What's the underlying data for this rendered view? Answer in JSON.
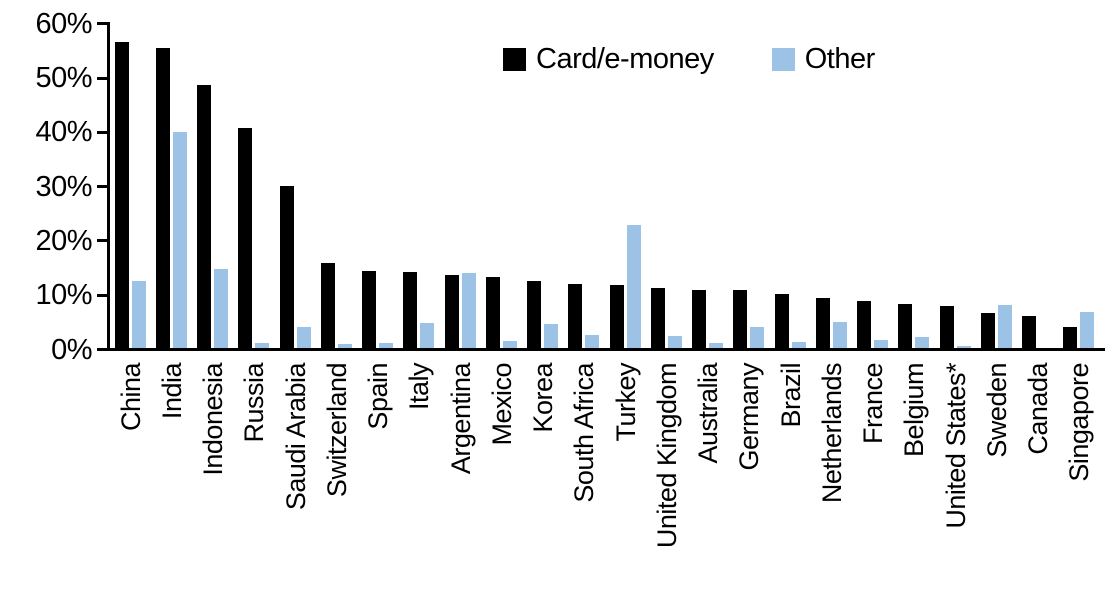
{
  "chart_data": {
    "type": "bar",
    "categories": [
      "China",
      "India",
      "Indonesia",
      "Russia",
      "Saudi Arabia",
      "Switzerland",
      "Spain",
      "Italy",
      "Argentina",
      "Mexico",
      "Korea",
      "South Africa",
      "Turkey",
      "United Kingdom",
      "Australia",
      "Germany",
      "Brazil",
      "Netherlands",
      "France",
      "Belgium",
      "United States*",
      "Sweden",
      "Canada",
      "Singapore"
    ],
    "series": [
      {
        "name": "Card/e-money",
        "color": "#000000",
        "values": [
          56.4,
          55.2,
          48.4,
          40.6,
          29.9,
          15.6,
          14.1,
          14.0,
          13.4,
          13.0,
          12.3,
          11.7,
          11.6,
          11.0,
          10.7,
          10.6,
          9.9,
          9.2,
          8.6,
          8.1,
          7.8,
          6.5,
          5.9,
          3.9
        ]
      },
      {
        "name": "Other",
        "color": "#9CC2E5",
        "values": [
          12.3,
          39.8,
          14.5,
          1.0,
          3.8,
          0.8,
          1.0,
          4.6,
          13.9,
          1.3,
          4.5,
          2.4,
          22.6,
          2.3,
          0.9,
          3.9,
          1.1,
          4.8,
          1.5,
          2.0,
          0.3,
          7.9,
          0.0,
          6.6
        ]
      }
    ],
    "title": "",
    "xlabel": "",
    "ylabel": "",
    "ylim": [
      0,
      60
    ],
    "yticks": [
      {
        "label": "60%",
        "value": 60
      },
      {
        "label": "50%",
        "value": 50
      },
      {
        "label": "40%",
        "value": 40
      },
      {
        "label": "30%",
        "value": 30
      },
      {
        "label": "20%",
        "value": 20
      },
      {
        "label": "10%",
        "value": 10
      },
      {
        "label": "0%",
        "value": 0
      }
    ],
    "grid": false,
    "legend_position": "top-center",
    "axis_color": "#000000"
  }
}
